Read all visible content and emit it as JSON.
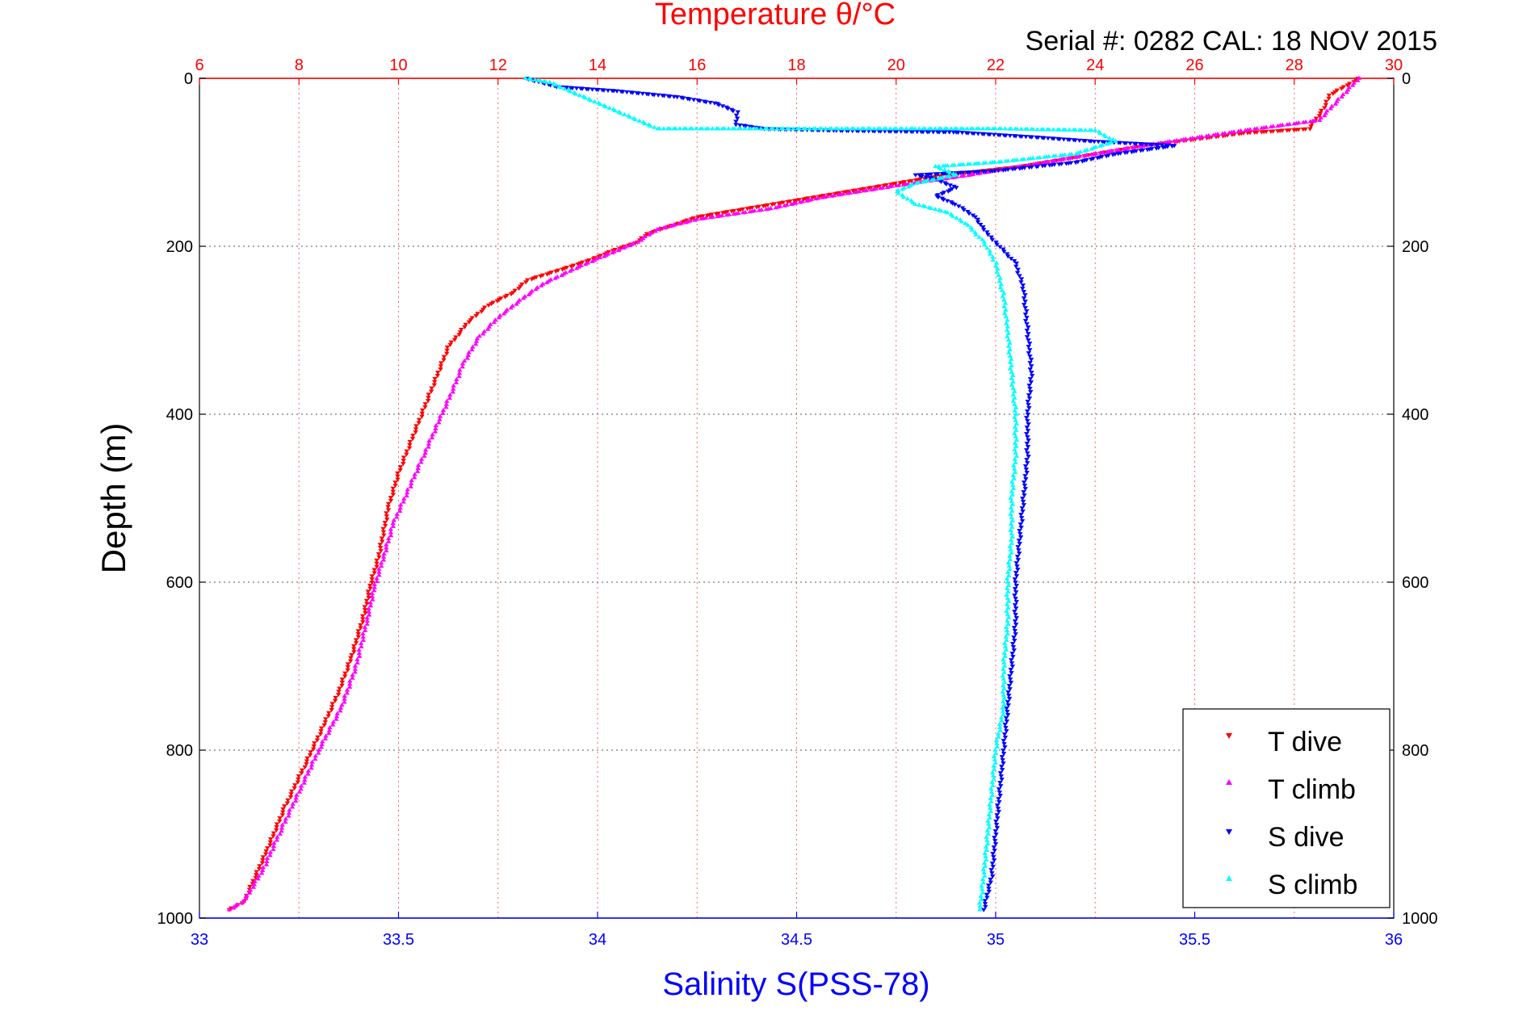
{
  "chart_data": {
    "type": "scatter",
    "title": "Temperature θ/°C",
    "subtitle": "Serial #: 0282  CAL: 18 NOV 2015",
    "xlabel": "Salinity S(PSS-78)",
    "ylabel": "Depth (m)",
    "x_top": {
      "label": "Temperature θ/°C",
      "lim": [
        6,
        30
      ],
      "ticks": [
        "6",
        "8",
        "10",
        "12",
        "14",
        "16",
        "18",
        "20",
        "22",
        "24",
        "26",
        "28",
        "30"
      ],
      "color": "#ff0000"
    },
    "x_bottom": {
      "label": "Salinity S(PSS-78)",
      "lim": [
        33,
        36
      ],
      "ticks": [
        "33",
        "33.5",
        "34",
        "34.5",
        "35",
        "35.5",
        "36"
      ],
      "color": "#0000ff"
    },
    "y": {
      "lim": [
        0,
        1000
      ],
      "reversed": true,
      "ticks": [
        "0",
        "200",
        "400",
        "600",
        "800",
        "1000"
      ]
    },
    "grid": true,
    "legend_position": "bottom-right",
    "series": [
      {
        "name": "T dive",
        "axis": "top",
        "color": "#ff0000",
        "marker": "triangle-down",
        "points": [
          [
            29.3,
            0
          ],
          [
            29.0,
            10
          ],
          [
            28.7,
            20
          ],
          [
            28.6,
            35
          ],
          [
            28.3,
            60
          ],
          [
            27.0,
            65
          ],
          [
            25.0,
            80
          ],
          [
            23.5,
            95
          ],
          [
            22.5,
            105
          ],
          [
            21.0,
            115
          ],
          [
            20.0,
            125
          ],
          [
            19.0,
            135
          ],
          [
            18.0,
            145
          ],
          [
            17.0,
            155
          ],
          [
            16.0,
            165
          ],
          [
            15.5,
            175
          ],
          [
            15.0,
            185
          ],
          [
            14.8,
            195
          ],
          [
            14.3,
            205
          ],
          [
            13.9,
            215
          ],
          [
            13.4,
            225
          ],
          [
            12.6,
            240
          ],
          [
            12.3,
            255
          ],
          [
            11.8,
            270
          ],
          [
            11.4,
            290
          ],
          [
            11.0,
            320
          ],
          [
            10.8,
            350
          ],
          [
            10.6,
            380
          ],
          [
            10.4,
            410
          ],
          [
            10.2,
            440
          ],
          [
            10.0,
            470
          ],
          [
            9.8,
            510
          ],
          [
            9.7,
            540
          ],
          [
            9.6,
            570
          ],
          [
            9.45,
            600
          ],
          [
            9.3,
            640
          ],
          [
            9.05,
            690
          ],
          [
            8.8,
            730
          ],
          [
            8.5,
            770
          ],
          [
            8.1,
            820
          ],
          [
            7.7,
            870
          ],
          [
            7.35,
            920
          ],
          [
            6.9,
            980
          ],
          [
            6.6,
            990
          ]
        ]
      },
      {
        "name": "T climb",
        "axis": "top",
        "color": "#ff00ff",
        "marker": "triangle-up",
        "points": [
          [
            29.3,
            0
          ],
          [
            28.5,
            50
          ],
          [
            27.0,
            62
          ],
          [
            25.0,
            80
          ],
          [
            23.0,
            100
          ],
          [
            21.5,
            115
          ],
          [
            20.0,
            128
          ],
          [
            18.5,
            142
          ],
          [
            17.5,
            155
          ],
          [
            16.0,
            168
          ],
          [
            15.2,
            180
          ],
          [
            14.8,
            195
          ],
          [
            14.4,
            205
          ],
          [
            14.0,
            215
          ],
          [
            13.5,
            228
          ],
          [
            12.9,
            245
          ],
          [
            12.5,
            262
          ],
          [
            12.0,
            285
          ],
          [
            11.6,
            310
          ],
          [
            11.3,
            340
          ],
          [
            11.1,
            370
          ],
          [
            10.8,
            410
          ],
          [
            10.5,
            450
          ],
          [
            10.2,
            490
          ],
          [
            9.9,
            530
          ],
          [
            9.7,
            570
          ],
          [
            9.5,
            610
          ],
          [
            9.35,
            650
          ],
          [
            9.15,
            700
          ],
          [
            8.85,
            750
          ],
          [
            8.4,
            800
          ],
          [
            8.0,
            850
          ],
          [
            7.6,
            900
          ],
          [
            7.3,
            940
          ],
          [
            6.9,
            980
          ],
          [
            6.6,
            990
          ]
        ]
      },
      {
        "name": "S dive",
        "axis": "bottom",
        "color": "#0000ff",
        "marker": "triangle-down",
        "points": [
          [
            33.82,
            0
          ],
          [
            33.9,
            10
          ],
          [
            34.05,
            15
          ],
          [
            34.2,
            22
          ],
          [
            34.3,
            30
          ],
          [
            34.35,
            40
          ],
          [
            34.35,
            55
          ],
          [
            34.42,
            60
          ],
          [
            34.6,
            62
          ],
          [
            34.9,
            64
          ],
          [
            35.1,
            70
          ],
          [
            35.25,
            75
          ],
          [
            35.45,
            80
          ],
          [
            35.3,
            90
          ],
          [
            35.2,
            100
          ],
          [
            35.1,
            105
          ],
          [
            35.0,
            110
          ],
          [
            34.8,
            115
          ],
          [
            34.85,
            120
          ],
          [
            34.9,
            130
          ],
          [
            34.85,
            140
          ],
          [
            34.9,
            150
          ],
          [
            34.95,
            165
          ],
          [
            34.97,
            180
          ],
          [
            35.0,
            195
          ],
          [
            35.05,
            220
          ],
          [
            35.07,
            250
          ],
          [
            35.08,
            300
          ],
          [
            35.09,
            350
          ],
          [
            35.08,
            400
          ],
          [
            35.08,
            450
          ],
          [
            35.07,
            500
          ],
          [
            35.06,
            550
          ],
          [
            35.05,
            600
          ],
          [
            35.05,
            650
          ],
          [
            35.04,
            700
          ],
          [
            35.03,
            750
          ],
          [
            35.02,
            800
          ],
          [
            35.01,
            850
          ],
          [
            35.0,
            900
          ],
          [
            34.99,
            950
          ],
          [
            34.97,
            990
          ]
        ]
      },
      {
        "name": "S climb",
        "axis": "bottom",
        "color": "#00ffff",
        "marker": "triangle-up",
        "points": [
          [
            33.82,
            0
          ],
          [
            33.88,
            5
          ],
          [
            34.15,
            60
          ],
          [
            34.5,
            60
          ],
          [
            34.8,
            60
          ],
          [
            35.0,
            60
          ],
          [
            35.25,
            62
          ],
          [
            35.3,
            75
          ],
          [
            35.2,
            90
          ],
          [
            35.0,
            100
          ],
          [
            34.85,
            105
          ],
          [
            34.9,
            115
          ],
          [
            34.8,
            125
          ],
          [
            34.75,
            135
          ],
          [
            34.8,
            150
          ],
          [
            34.88,
            160
          ],
          [
            34.93,
            175
          ],
          [
            34.97,
            195
          ],
          [
            35.0,
            220
          ],
          [
            35.02,
            260
          ],
          [
            35.03,
            300
          ],
          [
            35.04,
            350
          ],
          [
            35.05,
            400
          ],
          [
            35.05,
            450
          ],
          [
            35.04,
            500
          ],
          [
            35.04,
            550
          ],
          [
            35.03,
            600
          ],
          [
            35.03,
            650
          ],
          [
            35.02,
            700
          ],
          [
            35.02,
            750
          ],
          [
            35.0,
            800
          ],
          [
            34.99,
            850
          ],
          [
            34.98,
            900
          ],
          [
            34.97,
            950
          ],
          [
            34.96,
            990
          ]
        ]
      }
    ]
  }
}
